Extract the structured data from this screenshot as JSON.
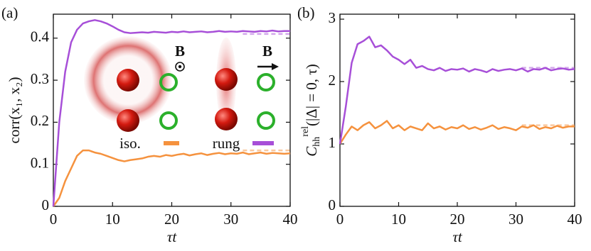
{
  "chart_data": [
    {
      "type": "line",
      "panel": "(a)",
      "ylabel": "corr(x₁, x₂)",
      "xlabel": "τt",
      "x": [
        0,
        1,
        2,
        3,
        4,
        5,
        6,
        7,
        8,
        9,
        10,
        11,
        12,
        13,
        14,
        15,
        16,
        17,
        18,
        19,
        20,
        21,
        22,
        23,
        24,
        25,
        26,
        27,
        28,
        29,
        30,
        31,
        32,
        33,
        34,
        35,
        36,
        37,
        38,
        39,
        40
      ],
      "xlim": [
        0,
        40
      ],
      "ylim": [
        0,
        0.457
      ],
      "xticks": [
        0,
        10,
        20,
        30,
        40
      ],
      "yticks": [
        0,
        0.1,
        0.2,
        0.3,
        0.4
      ],
      "saturation_from": 32,
      "legend": true,
      "annotations": [
        "B",
        "B"
      ],
      "series": [
        {
          "name": "iso.",
          "color": "#f5923e",
          "saturation": 0.133,
          "values": [
            0,
            0.02,
            0.06,
            0.09,
            0.12,
            0.133,
            0.133,
            0.128,
            0.125,
            0.12,
            0.115,
            0.11,
            0.107,
            0.11,
            0.112,
            0.114,
            0.118,
            0.12,
            0.118,
            0.122,
            0.12,
            0.123,
            0.125,
            0.121,
            0.124,
            0.126,
            0.122,
            0.125,
            0.127,
            0.124,
            0.126,
            0.125,
            0.128,
            0.124,
            0.126,
            0.128,
            0.125,
            0.127,
            0.126,
            0.125,
            0.126
          ]
        },
        {
          "name": "rung",
          "color": "#a74fd8",
          "saturation": 0.41,
          "values": [
            0,
            0.2,
            0.32,
            0.39,
            0.42,
            0.435,
            0.44,
            0.443,
            0.44,
            0.435,
            0.428,
            0.42,
            0.414,
            0.412,
            0.413,
            0.414,
            0.413,
            0.415,
            0.414,
            0.413,
            0.415,
            0.414,
            0.416,
            0.414,
            0.415,
            0.416,
            0.414,
            0.415,
            0.417,
            0.415,
            0.416,
            0.415,
            0.417,
            0.416,
            0.415,
            0.417,
            0.416,
            0.418,
            0.416,
            0.417,
            0.417
          ]
        }
      ]
    },
    {
      "type": "line",
      "panel": "(b)",
      "ylabel": {
        "symbol": "C",
        "subscript": "hh",
        "superscript": "rel",
        "args": "(|Δ| = 0, τ)"
      },
      "xlabel": "τt",
      "x": [
        0,
        1,
        2,
        3,
        4,
        5,
        6,
        7,
        8,
        9,
        10,
        11,
        12,
        13,
        14,
        15,
        16,
        17,
        18,
        19,
        20,
        21,
        22,
        23,
        24,
        25,
        26,
        27,
        28,
        29,
        30,
        31,
        32,
        33,
        34,
        35,
        36,
        37,
        38,
        39,
        40
      ],
      "xlim": [
        0,
        40
      ],
      "ylim": [
        0,
        3.08
      ],
      "xticks": [
        0,
        10,
        20,
        30,
        40
      ],
      "yticks": [
        0,
        1,
        2,
        3
      ],
      "saturation_from": 31,
      "series": [
        {
          "name": "iso.",
          "color": "#f5923e",
          "saturation": 1.3,
          "values": [
            1.0,
            1.15,
            1.28,
            1.22,
            1.3,
            1.35,
            1.25,
            1.3,
            1.37,
            1.25,
            1.3,
            1.22,
            1.28,
            1.25,
            1.22,
            1.33,
            1.25,
            1.28,
            1.23,
            1.27,
            1.25,
            1.3,
            1.24,
            1.27,
            1.23,
            1.26,
            1.3,
            1.24,
            1.27,
            1.25,
            1.22,
            1.28,
            1.26,
            1.3,
            1.24,
            1.27,
            1.25,
            1.29,
            1.26,
            1.28,
            1.28
          ]
        },
        {
          "name": "rung",
          "color": "#a74fd8",
          "saturation": 2.22,
          "values": [
            1.0,
            1.6,
            2.3,
            2.6,
            2.65,
            2.72,
            2.55,
            2.58,
            2.5,
            2.4,
            2.35,
            2.28,
            2.35,
            2.22,
            2.25,
            2.2,
            2.18,
            2.22,
            2.17,
            2.2,
            2.19,
            2.21,
            2.16,
            2.2,
            2.18,
            2.15,
            2.2,
            2.17,
            2.19,
            2.2,
            2.18,
            2.21,
            2.16,
            2.2,
            2.19,
            2.22,
            2.18,
            2.2,
            2.21,
            2.19,
            2.2
          ]
        }
      ]
    }
  ]
}
